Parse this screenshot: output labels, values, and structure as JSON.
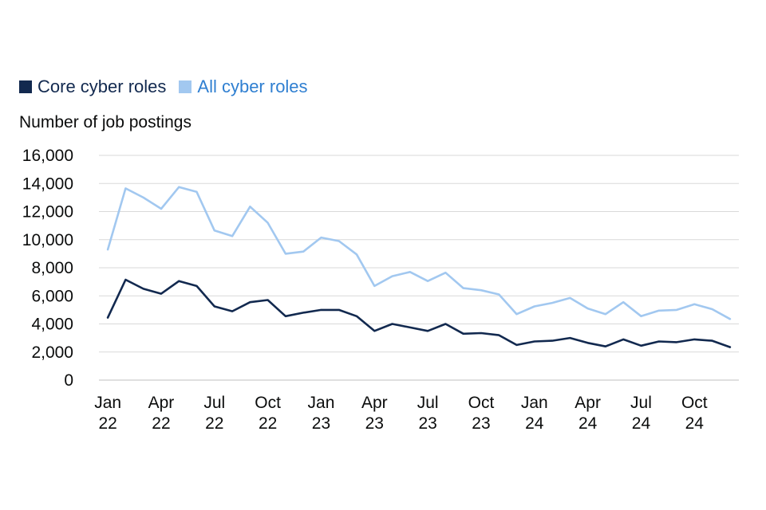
{
  "colors": {
    "core": "#12294f",
    "all": "#a2c8f0",
    "grid": "#d9d9d9",
    "axis": "#bfbfbf"
  },
  "legend": {
    "core_label": "Core cyber roles",
    "all_label": "All cyber roles"
  },
  "chart_data": {
    "type": "line",
    "title": "",
    "xlabel": "",
    "ylabel": "Number of job postings",
    "ylim": [
      0,
      16000
    ],
    "yticks": [
      "0",
      "2,000",
      "4,000",
      "6,000",
      "8,000",
      "10,000",
      "12,000",
      "14,000",
      "16,000"
    ],
    "x": [
      "Jan 2022",
      "Feb 2022",
      "Mar 2022",
      "Apr 2022",
      "May 2022",
      "Jun 2022",
      "Jul 2022",
      "Aug 2022",
      "Sep 2022",
      "Oct 2022",
      "Nov 2022",
      "Dec 2022",
      "Jan 2023",
      "Feb 2023",
      "Mar 2023",
      "Apr 2023",
      "May 2023",
      "Jun 2023",
      "Jul 2023",
      "Aug 2023",
      "Sep 2023",
      "Oct 2023",
      "Nov 2023",
      "Dec 2023",
      "Jan 2024",
      "Feb 2024",
      "Mar 2024",
      "Apr 2024",
      "May 2024",
      "Jun 2024",
      "Jul 2024",
      "Aug 2024",
      "Sep 2024",
      "Oct 2024",
      "Nov 2024",
      "Dec 2024"
    ],
    "xticks": [
      {
        "index": 0,
        "month": "Jan",
        "year": "22"
      },
      {
        "index": 3,
        "month": "Apr",
        "year": "22"
      },
      {
        "index": 6,
        "month": "Jul",
        "year": "22"
      },
      {
        "index": 9,
        "month": "Oct",
        "year": "22"
      },
      {
        "index": 12,
        "month": "Jan",
        "year": "23"
      },
      {
        "index": 15,
        "month": "Apr",
        "year": "23"
      },
      {
        "index": 18,
        "month": "Jul",
        "year": "23"
      },
      {
        "index": 21,
        "month": "Oct",
        "year": "23"
      },
      {
        "index": 24,
        "month": "Jan",
        "year": "24"
      },
      {
        "index": 27,
        "month": "Apr",
        "year": "24"
      },
      {
        "index": 30,
        "month": "Jul",
        "year": "24"
      },
      {
        "index": 33,
        "month": "Oct",
        "year": "24"
      }
    ],
    "series": [
      {
        "name": "Core cyber roles",
        "values": [
          4450,
          7150,
          6500,
          6150,
          7050,
          6700,
          5250,
          4900,
          5550,
          5700,
          4550,
          4800,
          5000,
          5000,
          4550,
          3500,
          4000,
          3750,
          3500,
          4000,
          3300,
          3350,
          3200,
          2500,
          2750,
          2800,
          3000,
          2650,
          2400,
          2900,
          2450,
          2750,
          2700,
          2900,
          2800,
          2350
        ]
      },
      {
        "name": "All cyber roles",
        "values": [
          9300,
          13650,
          13000,
          12200,
          13750,
          13400,
          10650,
          10250,
          12350,
          11200,
          9000,
          9150,
          10150,
          9900,
          8950,
          6700,
          7400,
          7700,
          7050,
          7650,
          6550,
          6400,
          6100,
          4700,
          5250,
          5500,
          5850,
          5100,
          4700,
          5550,
          4550,
          4950,
          5000,
          5400,
          5050,
          4350
        ]
      }
    ]
  }
}
